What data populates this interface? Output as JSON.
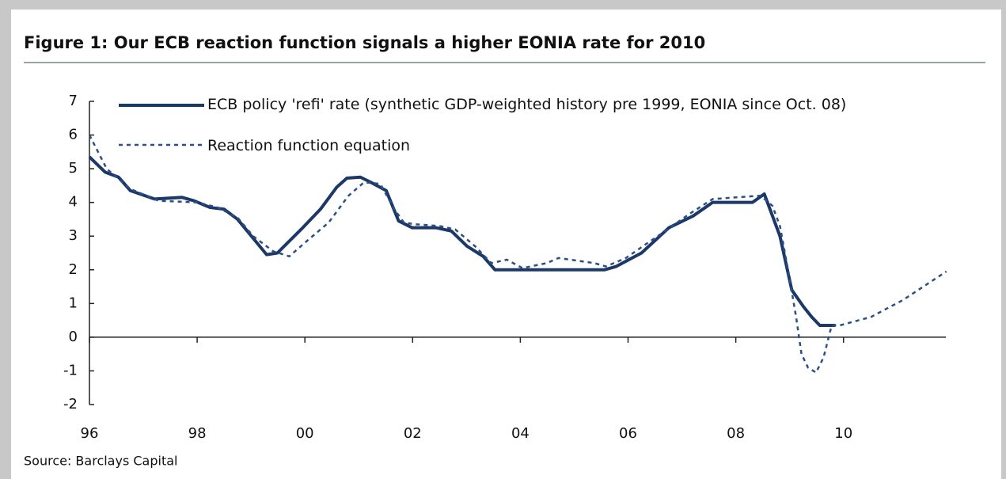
{
  "chart_data": {
    "type": "line",
    "title": "Figure 1: Our ECB reaction function signals a higher EONIA rate for 2010",
    "source": "Source: Barclays Capital",
    "xlim": [
      1996,
      2011.9
    ],
    "xticks": [
      {
        "value": 1996,
        "label": "96"
      },
      {
        "value": 1998,
        "label": "98"
      },
      {
        "value": 2000,
        "label": "00"
      },
      {
        "value": 2002,
        "label": "02"
      },
      {
        "value": 2004,
        "label": "04"
      },
      {
        "value": 2006,
        "label": "06"
      },
      {
        "value": 2008,
        "label": "08"
      },
      {
        "value": 2010,
        "label": "10"
      }
    ],
    "ylim": [
      -2,
      7
    ],
    "yticks": [
      -2,
      -1,
      0,
      1,
      2,
      3,
      4,
      5,
      6,
      7
    ],
    "series": [
      {
        "name": "ECB policy 'refi' rate (synthetic GDP-weighted history pre 1999, EONIA since Oct. 08)",
        "color": "#1c3866",
        "dash": false,
        "x": [
          1996.0,
          1996.29,
          1996.54,
          1996.76,
          1997.21,
          1997.72,
          1997.94,
          1998.24,
          1998.5,
          1998.75,
          1999.29,
          1999.49,
          1999.93,
          2000.29,
          2000.59,
          2000.78,
          2001.03,
          2001.22,
          2001.51,
          2001.74,
          2001.99,
          2002.43,
          2002.72,
          2003.01,
          2003.31,
          2003.53,
          2005.56,
          2005.78,
          2006.25,
          2006.76,
          2007.21,
          2007.57,
          2008.31,
          2008.53,
          2008.82,
          2009.04,
          2009.26,
          2009.41,
          2009.56,
          2009.85
        ],
        "values": [
          5.35,
          4.9,
          4.75,
          4.35,
          4.1,
          4.15,
          4.05,
          3.85,
          3.8,
          3.5,
          2.45,
          2.5,
          3.2,
          3.8,
          4.45,
          4.72,
          4.75,
          4.6,
          4.35,
          3.45,
          3.25,
          3.25,
          3.15,
          2.7,
          2.4,
          2.0,
          2.0,
          2.1,
          2.5,
          3.25,
          3.6,
          4.0,
          4.0,
          4.25,
          3.0,
          1.4,
          0.9,
          0.6,
          0.35,
          0.35
        ]
      },
      {
        "name": "Reaction function equation",
        "color": "#2b4f86",
        "dash": true,
        "x": [
          1996.0,
          1996.32,
          1996.76,
          1997.28,
          1998.01,
          1998.38,
          1998.75,
          1999.04,
          1999.41,
          1999.71,
          2000.07,
          2000.44,
          2000.81,
          2001.1,
          2001.4,
          2001.66,
          2001.84,
          2002.06,
          2002.5,
          2002.79,
          2003.16,
          2003.46,
          2003.75,
          2004.04,
          2004.49,
          2004.71,
          2004.93,
          2005.37,
          2005.59,
          2005.96,
          2006.32,
          2006.69,
          2007.13,
          2007.57,
          2008.01,
          2008.46,
          2008.68,
          2008.82,
          2008.97,
          2009.12,
          2009.22,
          2009.34,
          2009.49,
          2009.63,
          2009.78,
          2009.93,
          2010.51,
          2011.1,
          2011.91
        ],
        "values": [
          6.0,
          5.0,
          4.4,
          4.05,
          4.0,
          3.85,
          3.55,
          3.0,
          2.55,
          2.4,
          2.9,
          3.4,
          4.2,
          4.6,
          4.55,
          3.8,
          3.4,
          3.35,
          3.3,
          3.2,
          2.7,
          2.2,
          2.3,
          2.05,
          2.2,
          2.35,
          2.3,
          2.2,
          2.1,
          2.35,
          2.75,
          3.15,
          3.65,
          4.1,
          4.15,
          4.2,
          3.9,
          3.3,
          2.0,
          0.6,
          -0.5,
          -0.9,
          -1.05,
          -0.6,
          0.35,
          0.35,
          0.6,
          1.1,
          1.95
        ]
      }
    ]
  }
}
